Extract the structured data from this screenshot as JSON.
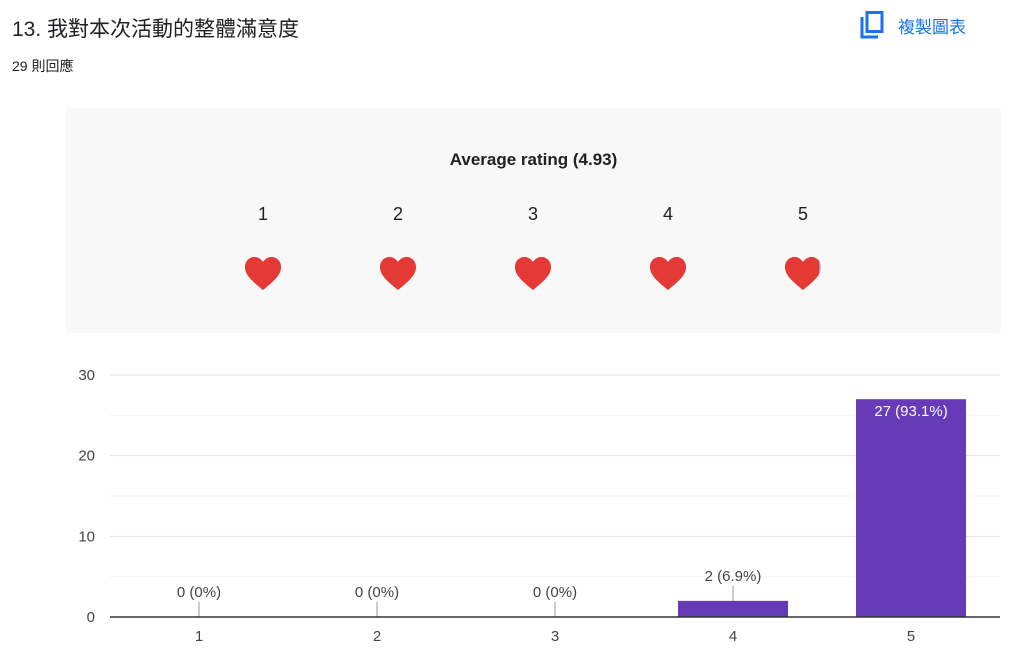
{
  "question": {
    "title": "13. 我對本次活動的整體滿意度",
    "responses": "29 則回應"
  },
  "toolbar": {
    "copy_label": "複製圖表",
    "copy_icon": "copy-icon"
  },
  "rating": {
    "average_label": "Average rating (4.93)",
    "average": 4.93,
    "scale": [
      "1",
      "2",
      "3",
      "4",
      "5"
    ],
    "icon": "heart-icon",
    "fill_color": "#e53935",
    "empty_color": "#bdbdbd"
  },
  "chart_data": {
    "type": "bar",
    "categories": [
      "1",
      "2",
      "3",
      "4",
      "5"
    ],
    "values": [
      0,
      0,
      0,
      2,
      27
    ],
    "data_labels": [
      "0 (0%)",
      "0 (0%)",
      "0 (0%)",
      "2 (6.9%)",
      "27 (93.1%)"
    ],
    "ylim": [
      0,
      30
    ],
    "yticks": [
      0,
      10,
      20,
      30
    ],
    "grid": true,
    "bar_color": "#673ab7"
  }
}
